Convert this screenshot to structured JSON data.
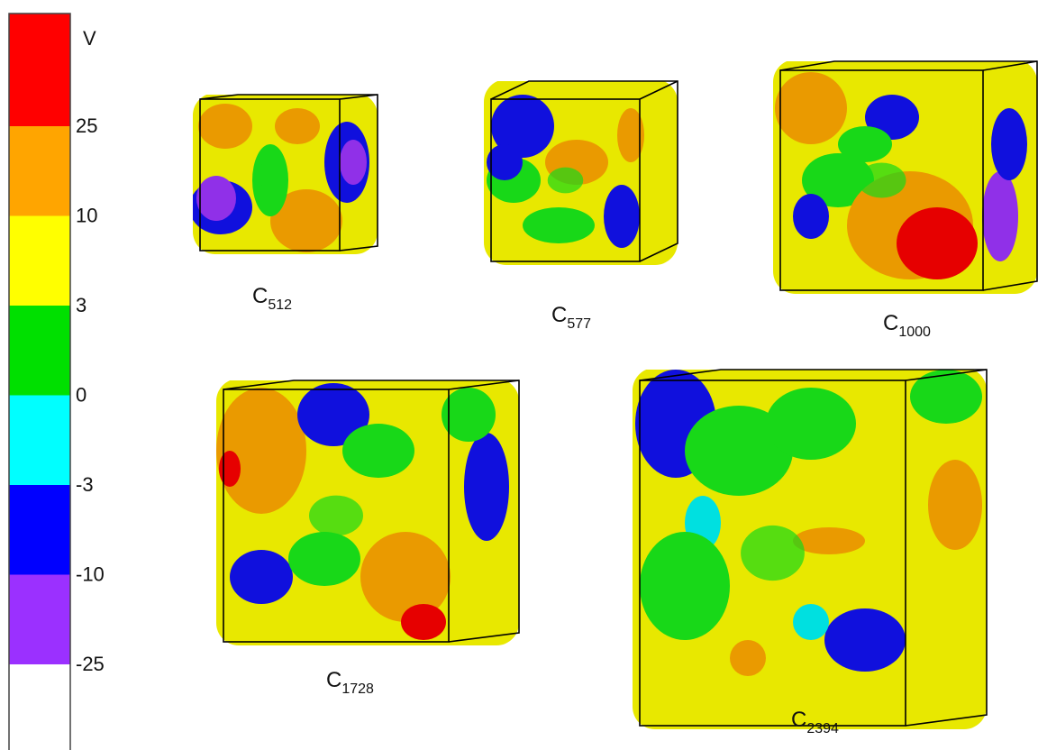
{
  "colorbar": {
    "unit": "V",
    "ticks": [
      25,
      10,
      3,
      0,
      -3,
      -10,
      -25
    ],
    "colors": [
      "#ff0000",
      "#ffa500",
      "#ffff00",
      "#00e000",
      "#00ffff",
      "#0000ff",
      "#9b30ff",
      "#ffffff"
    ]
  },
  "panels": [
    {
      "base": "C",
      "subscript": "512"
    },
    {
      "base": "C",
      "subscript": "577"
    },
    {
      "base": "C",
      "subscript": "1000"
    },
    {
      "base": "C",
      "subscript": "1728"
    },
    {
      "base": "C",
      "subscript": "2394"
    }
  ]
}
